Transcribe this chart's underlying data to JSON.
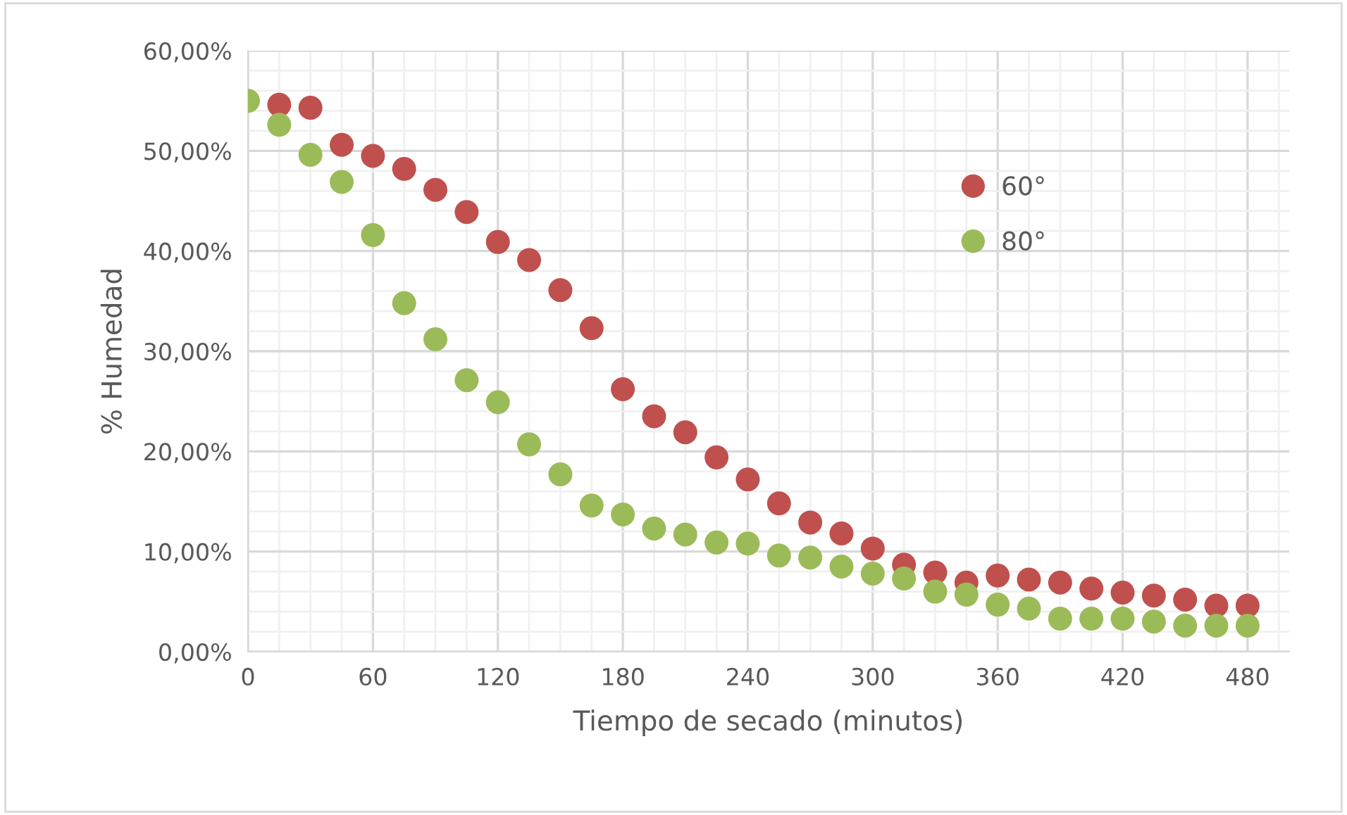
{
  "chart_data": {
    "type": "scatter",
    "xlabel": "Tiempo de secado (minutos)",
    "ylabel": "% Humedad",
    "x": [
      0,
      15,
      30,
      45,
      60,
      75,
      90,
      105,
      120,
      135,
      150,
      165,
      180,
      195,
      210,
      225,
      240,
      255,
      270,
      285,
      300,
      315,
      330,
      345,
      360,
      375,
      390,
      405,
      420,
      435,
      450,
      465,
      480
    ],
    "series": [
      {
        "name": "60°",
        "color": "#c0504d",
        "values": [
          null,
          54.6,
          54.3,
          50.6,
          49.5,
          48.2,
          46.1,
          43.9,
          40.9,
          39.1,
          36.1,
          32.3,
          26.2,
          23.5,
          21.9,
          19.4,
          17.2,
          14.8,
          12.9,
          11.8,
          10.3,
          8.7,
          7.9,
          6.9,
          7.6,
          7.2,
          6.9,
          6.3,
          5.9,
          5.6,
          5.2,
          4.6,
          4.6
        ]
      },
      {
        "name": "80°",
        "color": "#9bbb59",
        "values": [
          55.0,
          52.6,
          49.6,
          46.9,
          41.6,
          34.8,
          31.2,
          27.1,
          24.9,
          20.7,
          17.7,
          14.6,
          13.7,
          12.3,
          11.7,
          10.9,
          10.8,
          9.6,
          9.4,
          8.5,
          7.8,
          7.3,
          6.0,
          5.7,
          4.7,
          4.3,
          3.3,
          3.3,
          3.3,
          3.0,
          2.6,
          2.6,
          2.6
        ]
      }
    ],
    "xlim": [
      0,
      500
    ],
    "xticks": [
      0,
      60,
      120,
      180,
      240,
      300,
      360,
      420,
      480
    ],
    "ylim": [
      0,
      60
    ],
    "yticks": [
      {
        "value": 0,
        "label": "0,00%"
      },
      {
        "value": 10,
        "label": "10,00%"
      },
      {
        "value": 20,
        "label": "20,00%"
      },
      {
        "value": 30,
        "label": "30,00%"
      },
      {
        "value": 40,
        "label": "40,00%"
      },
      {
        "value": 50,
        "label": "50,00%"
      },
      {
        "value": 60,
        "label": "60,00%"
      }
    ],
    "grid": true,
    "legend": "top right",
    "marker": "circle"
  }
}
